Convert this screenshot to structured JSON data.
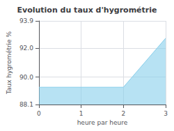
{
  "chart_data": {
    "type": "area",
    "title": "Evolution du taux d'hygrométrie",
    "xlabel": "heure par heure",
    "ylabel": "Taux hygrométrie %",
    "x": [
      0,
      2,
      3
    ],
    "values": [
      89.3,
      89.3,
      92.7
    ],
    "color": "#87ceeb",
    "xlim": [
      0,
      3
    ],
    "xticks": [
      0,
      1,
      2,
      3
    ],
    "ylim": [
      88.1,
      93.9
    ],
    "yticks": [
      88.1,
      {
        "value": 90,
        "label": "90.0"
      },
      {
        "value": 92,
        "label": "92.0"
      },
      93.9
    ],
    "grid": true
  }
}
